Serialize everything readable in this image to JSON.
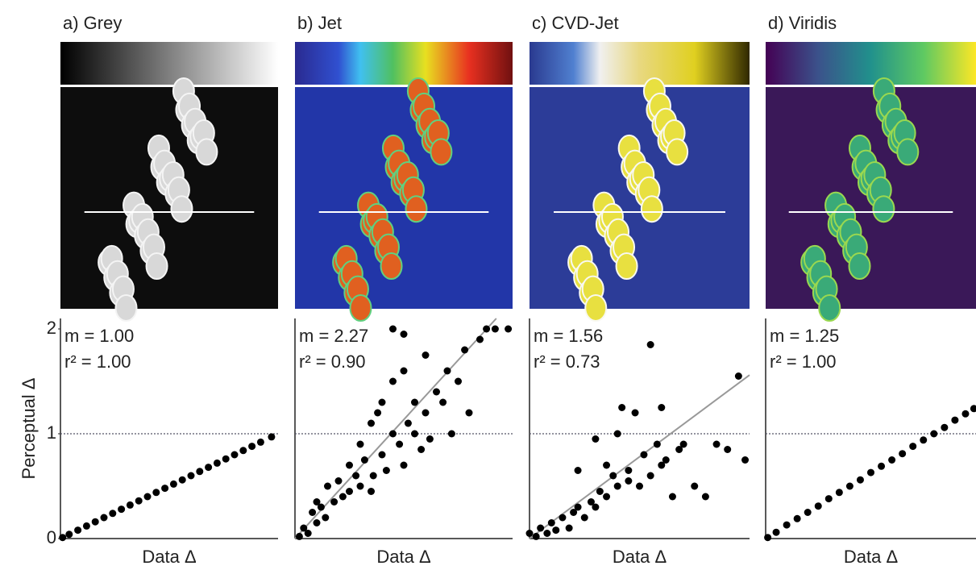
{
  "chart_data": [
    {
      "type": "scatter",
      "title": "a) Grey",
      "annotations": [
        "m = 1.00",
        "r² = 1.00"
      ],
      "xlabel": "Data Δ",
      "ylabel": "Perceptual Δ",
      "x": [
        0.01,
        0.04,
        0.08,
        0.12,
        0.16,
        0.2,
        0.24,
        0.28,
        0.32,
        0.36,
        0.4,
        0.44,
        0.48,
        0.52,
        0.56,
        0.6,
        0.64,
        0.68,
        0.72,
        0.76,
        0.8,
        0.84,
        0.88,
        0.92,
        0.97
      ],
      "values": [
        0.01,
        0.04,
        0.08,
        0.12,
        0.16,
        0.2,
        0.24,
        0.28,
        0.32,
        0.36,
        0.4,
        0.44,
        0.48,
        0.52,
        0.56,
        0.6,
        0.64,
        0.68,
        0.72,
        0.76,
        0.8,
        0.84,
        0.88,
        0.92,
        0.97
      ],
      "xlim": [
        0,
        1
      ],
      "ylim": [
        0,
        2.1
      ],
      "yticks": [
        0,
        1,
        2
      ],
      "hline": 1
    },
    {
      "type": "scatter",
      "title": "b) Jet",
      "annotations": [
        "m = 2.27",
        "r² = 0.90"
      ],
      "xlabel": "Data Δ",
      "fit_slope": 2.27,
      "x": [
        0.02,
        0.04,
        0.06,
        0.08,
        0.1,
        0.1,
        0.12,
        0.14,
        0.15,
        0.18,
        0.2,
        0.22,
        0.25,
        0.25,
        0.28,
        0.3,
        0.3,
        0.32,
        0.35,
        0.36,
        0.38,
        0.4,
        0.4,
        0.42,
        0.45,
        0.45,
        0.48,
        0.5,
        0.5,
        0.52,
        0.55,
        0.55,
        0.58,
        0.6,
        0.62,
        0.65,
        0.68,
        0.7,
        0.72,
        0.75,
        0.78,
        0.8,
        0.85,
        0.88,
        0.92,
        0.98,
        0.45,
        0.5,
        0.35,
        0.6
      ],
      "values": [
        0.02,
        0.1,
        0.05,
        0.25,
        0.15,
        0.35,
        0.3,
        0.2,
        0.5,
        0.35,
        0.55,
        0.4,
        0.7,
        0.45,
        0.6,
        0.9,
        0.5,
        0.75,
        1.1,
        0.6,
        1.2,
        0.8,
        1.3,
        0.65,
        1.5,
        1.0,
        0.9,
        1.6,
        0.7,
        1.1,
        1.0,
        1.3,
        0.85,
        1.2,
        0.95,
        1.4,
        1.3,
        1.6,
        1.0,
        1.5,
        1.8,
        1.2,
        1.9,
        2.0,
        2.0,
        2.0,
        2.0,
        1.95,
        0.45,
        1.75
      ],
      "xlim": [
        0,
        1
      ],
      "ylim": [
        0,
        2.1
      ],
      "hline": 1
    },
    {
      "type": "scatter",
      "title": "c) CVD-Jet",
      "annotations": [
        "m = 1.56",
        "r² = 0.73"
      ],
      "xlabel": "Data Δ",
      "fit_slope": 1.56,
      "x": [
        0.0,
        0.03,
        0.05,
        0.08,
        0.1,
        0.12,
        0.15,
        0.18,
        0.2,
        0.22,
        0.25,
        0.28,
        0.3,
        0.32,
        0.35,
        0.38,
        0.4,
        0.42,
        0.45,
        0.48,
        0.5,
        0.52,
        0.55,
        0.58,
        0.6,
        0.62,
        0.65,
        0.68,
        0.7,
        0.75,
        0.8,
        0.85,
        0.9,
        0.95,
        0.98,
        0.3,
        0.35,
        0.4,
        0.45,
        0.55,
        0.6,
        0.22
      ],
      "values": [
        0.05,
        0.02,
        0.1,
        0.05,
        0.15,
        0.08,
        0.2,
        0.1,
        0.25,
        0.3,
        0.2,
        0.35,
        0.3,
        0.45,
        0.4,
        0.6,
        0.5,
        1.25,
        0.65,
        1.2,
        0.5,
        0.8,
        0.6,
        0.9,
        0.7,
        0.75,
        0.4,
        0.85,
        0.9,
        0.5,
        0.4,
        0.9,
        0.85,
        1.55,
        0.75,
        0.95,
        0.7,
        1.0,
        0.55,
        1.85,
        1.25,
        0.65
      ],
      "xlim": [
        0,
        1
      ],
      "ylim": [
        0,
        2.1
      ],
      "hline": 1
    },
    {
      "type": "scatter",
      "title": "d) Viridis",
      "annotations": [
        "m = 1.25",
        "r² = 1.00"
      ],
      "xlabel": "Data Δ",
      "x": [
        0.01,
        0.05,
        0.1,
        0.15,
        0.2,
        0.25,
        0.3,
        0.35,
        0.4,
        0.45,
        0.5,
        0.55,
        0.6,
        0.65,
        0.7,
        0.75,
        0.8,
        0.85,
        0.9,
        0.95,
        0.99
      ],
      "values": [
        0.01,
        0.06,
        0.13,
        0.19,
        0.25,
        0.31,
        0.38,
        0.44,
        0.5,
        0.56,
        0.63,
        0.69,
        0.75,
        0.81,
        0.88,
        0.94,
        1.0,
        1.06,
        1.13,
        1.19,
        1.24
      ],
      "xlim": [
        0,
        1
      ],
      "ylim": [
        0,
        2.1
      ],
      "hline": 1
    }
  ]
}
